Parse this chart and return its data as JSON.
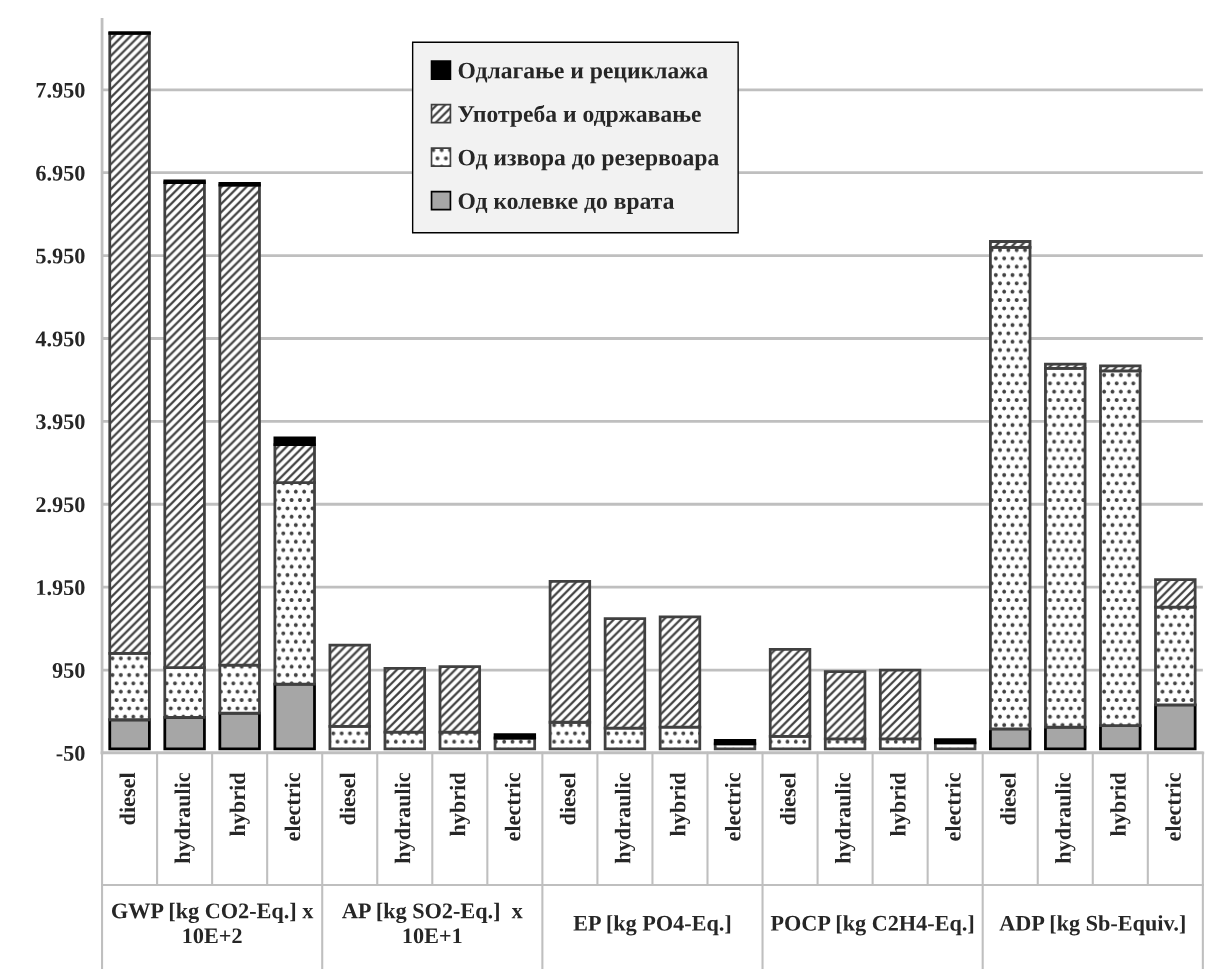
{
  "chart_data": {
    "type": "bar",
    "stacked": true,
    "categories": [
      "diesel",
      "hydraulic",
      "hybrid",
      "electric",
      "diesel",
      "hydraulic",
      "hybrid",
      "electric",
      "diesel",
      "hydraulic",
      "hybrid",
      "electric",
      "diesel",
      "hydraulic",
      "hybrid",
      "electric",
      "diesel",
      "hydraulic",
      "hybrid",
      "electric"
    ],
    "series": [
      {
        "name": "Од колевке до врата",
        "color": "#a6a6a6",
        "values": [
          350,
          380,
          430,
          780,
          null,
          null,
          null,
          null,
          0,
          0,
          0,
          0,
          0,
          0,
          0,
          0,
          240,
          260,
          280,
          530
        ]
      },
      {
        "name": "Од извора до резервоара",
        "color": "#404040",
        "values": [
          800,
          600,
          580,
          2430,
          270,
          200,
          200,
          130,
          320,
          250,
          260,
          60,
          150,
          120,
          120,
          70,
          5810,
          4330,
          4280,
          1180
        ]
      },
      {
        "name": "Употреба и одржавање",
        "color": "#404040",
        "values": [
          7480,
          5850,
          5790,
          460,
          980,
          770,
          790,
          0,
          1700,
          1320,
          1330,
          0,
          1050,
          810,
          830,
          0,
          70,
          50,
          60,
          330
        ]
      },
      {
        "name": "Одлагање и рециклажа",
        "color": "#000000",
        "values": [
          10,
          20,
          20,
          80,
          0,
          0,
          0,
          40,
          0,
          0,
          0,
          40,
          0,
          0,
          0,
          40,
          0,
          0,
          0,
          0
        ]
      }
    ],
    "ylim": [
      -50,
      8800
    ],
    "yticks": [
      {
        "value": -50,
        "label": "-50"
      },
      {
        "value": 950,
        "label": "950"
      },
      {
        "value": 1950,
        "label": "1.950"
      },
      {
        "value": 2950,
        "label": "2.950"
      },
      {
        "value": 3950,
        "label": "3.950"
      },
      {
        "value": 4950,
        "label": "4.950"
      },
      {
        "value": 5950,
        "label": "5.950"
      },
      {
        "value": 6950,
        "label": "6.950"
      },
      {
        "value": 7950,
        "label": "7.950"
      }
    ],
    "grid": "y",
    "legend": "top",
    "annotations": [
      "GWP [kg CO2-Eq.] x 10E+2",
      "AP [kg SO2-Eq.]  x 10E+1",
      "EP [kg PO4-Eq.]",
      "POCP [kg C2H4-Eq.]",
      "ADP [kg Sb-Equiv.]"
    ]
  }
}
